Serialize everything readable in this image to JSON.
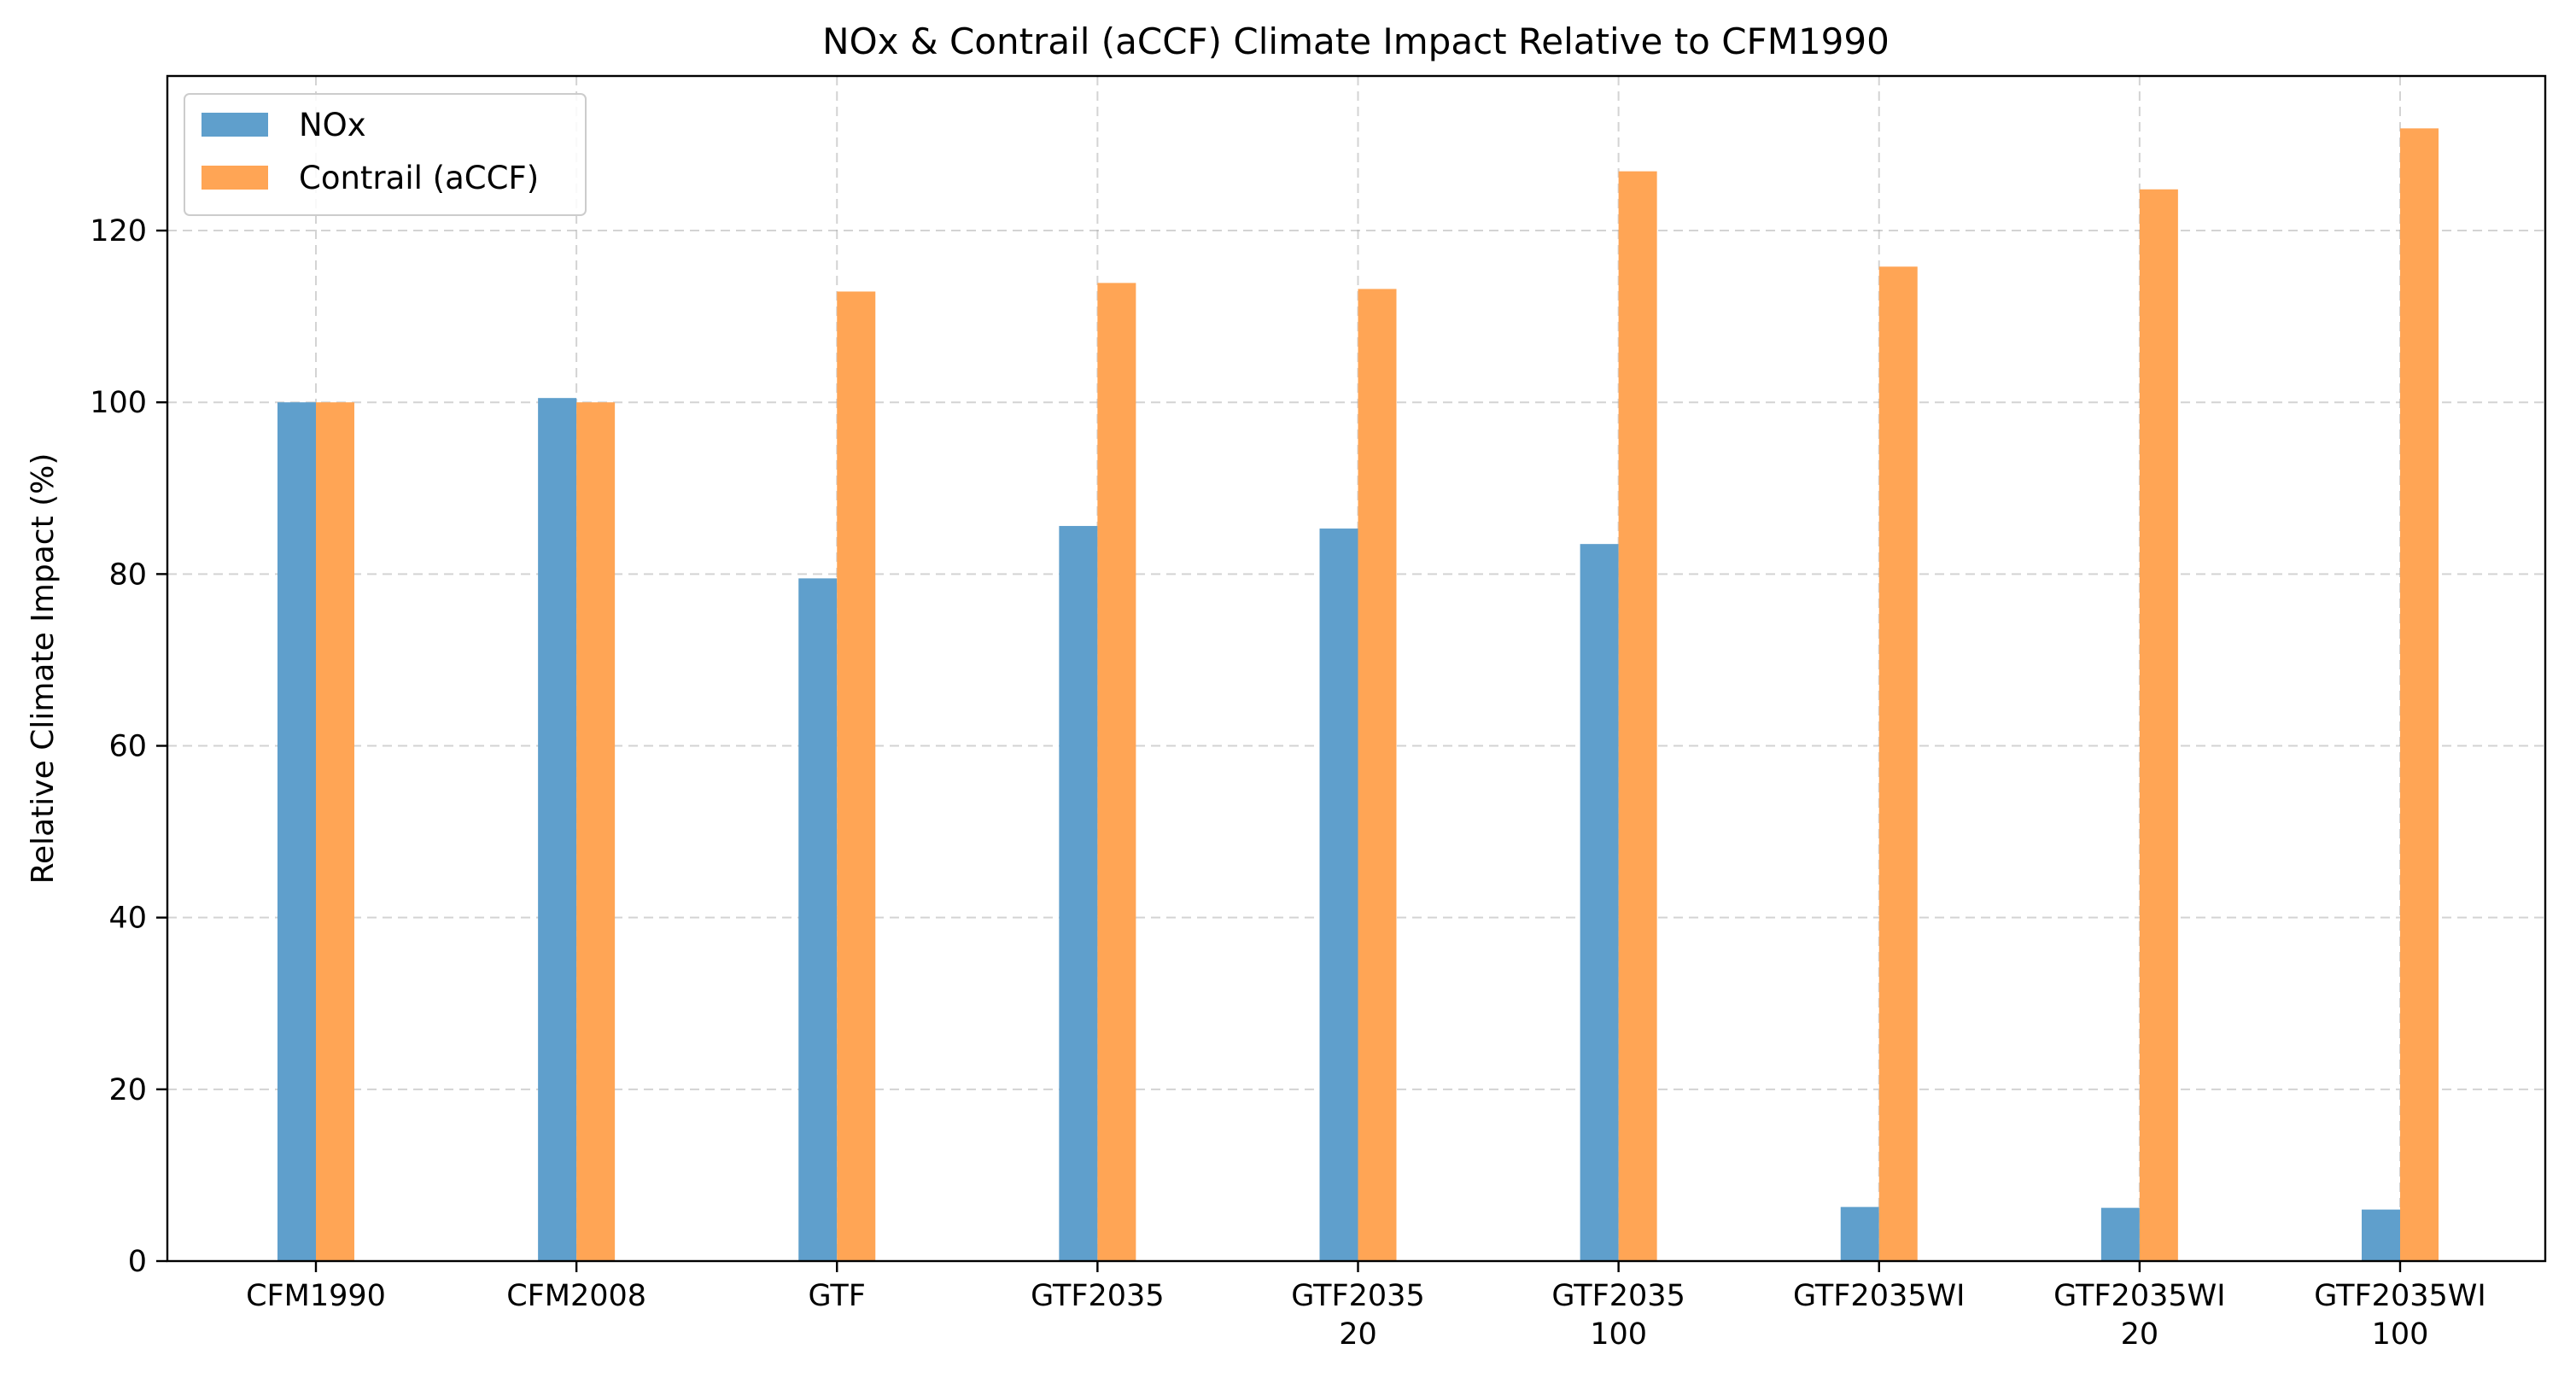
{
  "chart_data": {
    "type": "bar",
    "title": "NOx & Contrail (aCCF) Climate Impact Relative to CFM1990",
    "xlabel": "",
    "ylabel": "Relative Climate Impact (%)",
    "ylim": [
      0,
      138
    ],
    "yticks": [
      0,
      20,
      40,
      60,
      80,
      100,
      120
    ],
    "grid": true,
    "legend_position": "upper-left",
    "categories": [
      [
        "CFM1990"
      ],
      [
        "CFM2008"
      ],
      [
        "GTF"
      ],
      [
        "GTF2035"
      ],
      [
        "GTF2035",
        "20"
      ],
      [
        "GTF2035",
        "100"
      ],
      [
        "GTF2035WI"
      ],
      [
        "GTF2035WI",
        "20"
      ],
      [
        "GTF2035WI",
        "100"
      ]
    ],
    "series": [
      {
        "name": "NOx",
        "color": "#5f9fcc",
        "values": [
          100,
          100.5,
          79.5,
          85.6,
          85.3,
          83.5,
          6.3,
          6.2,
          6.0
        ]
      },
      {
        "name": "Contrail (aCCF)",
        "color": "#ffa555",
        "values": [
          100,
          100,
          112.9,
          113.9,
          113.2,
          126.9,
          115.8,
          124.8,
          131.9
        ]
      }
    ]
  }
}
